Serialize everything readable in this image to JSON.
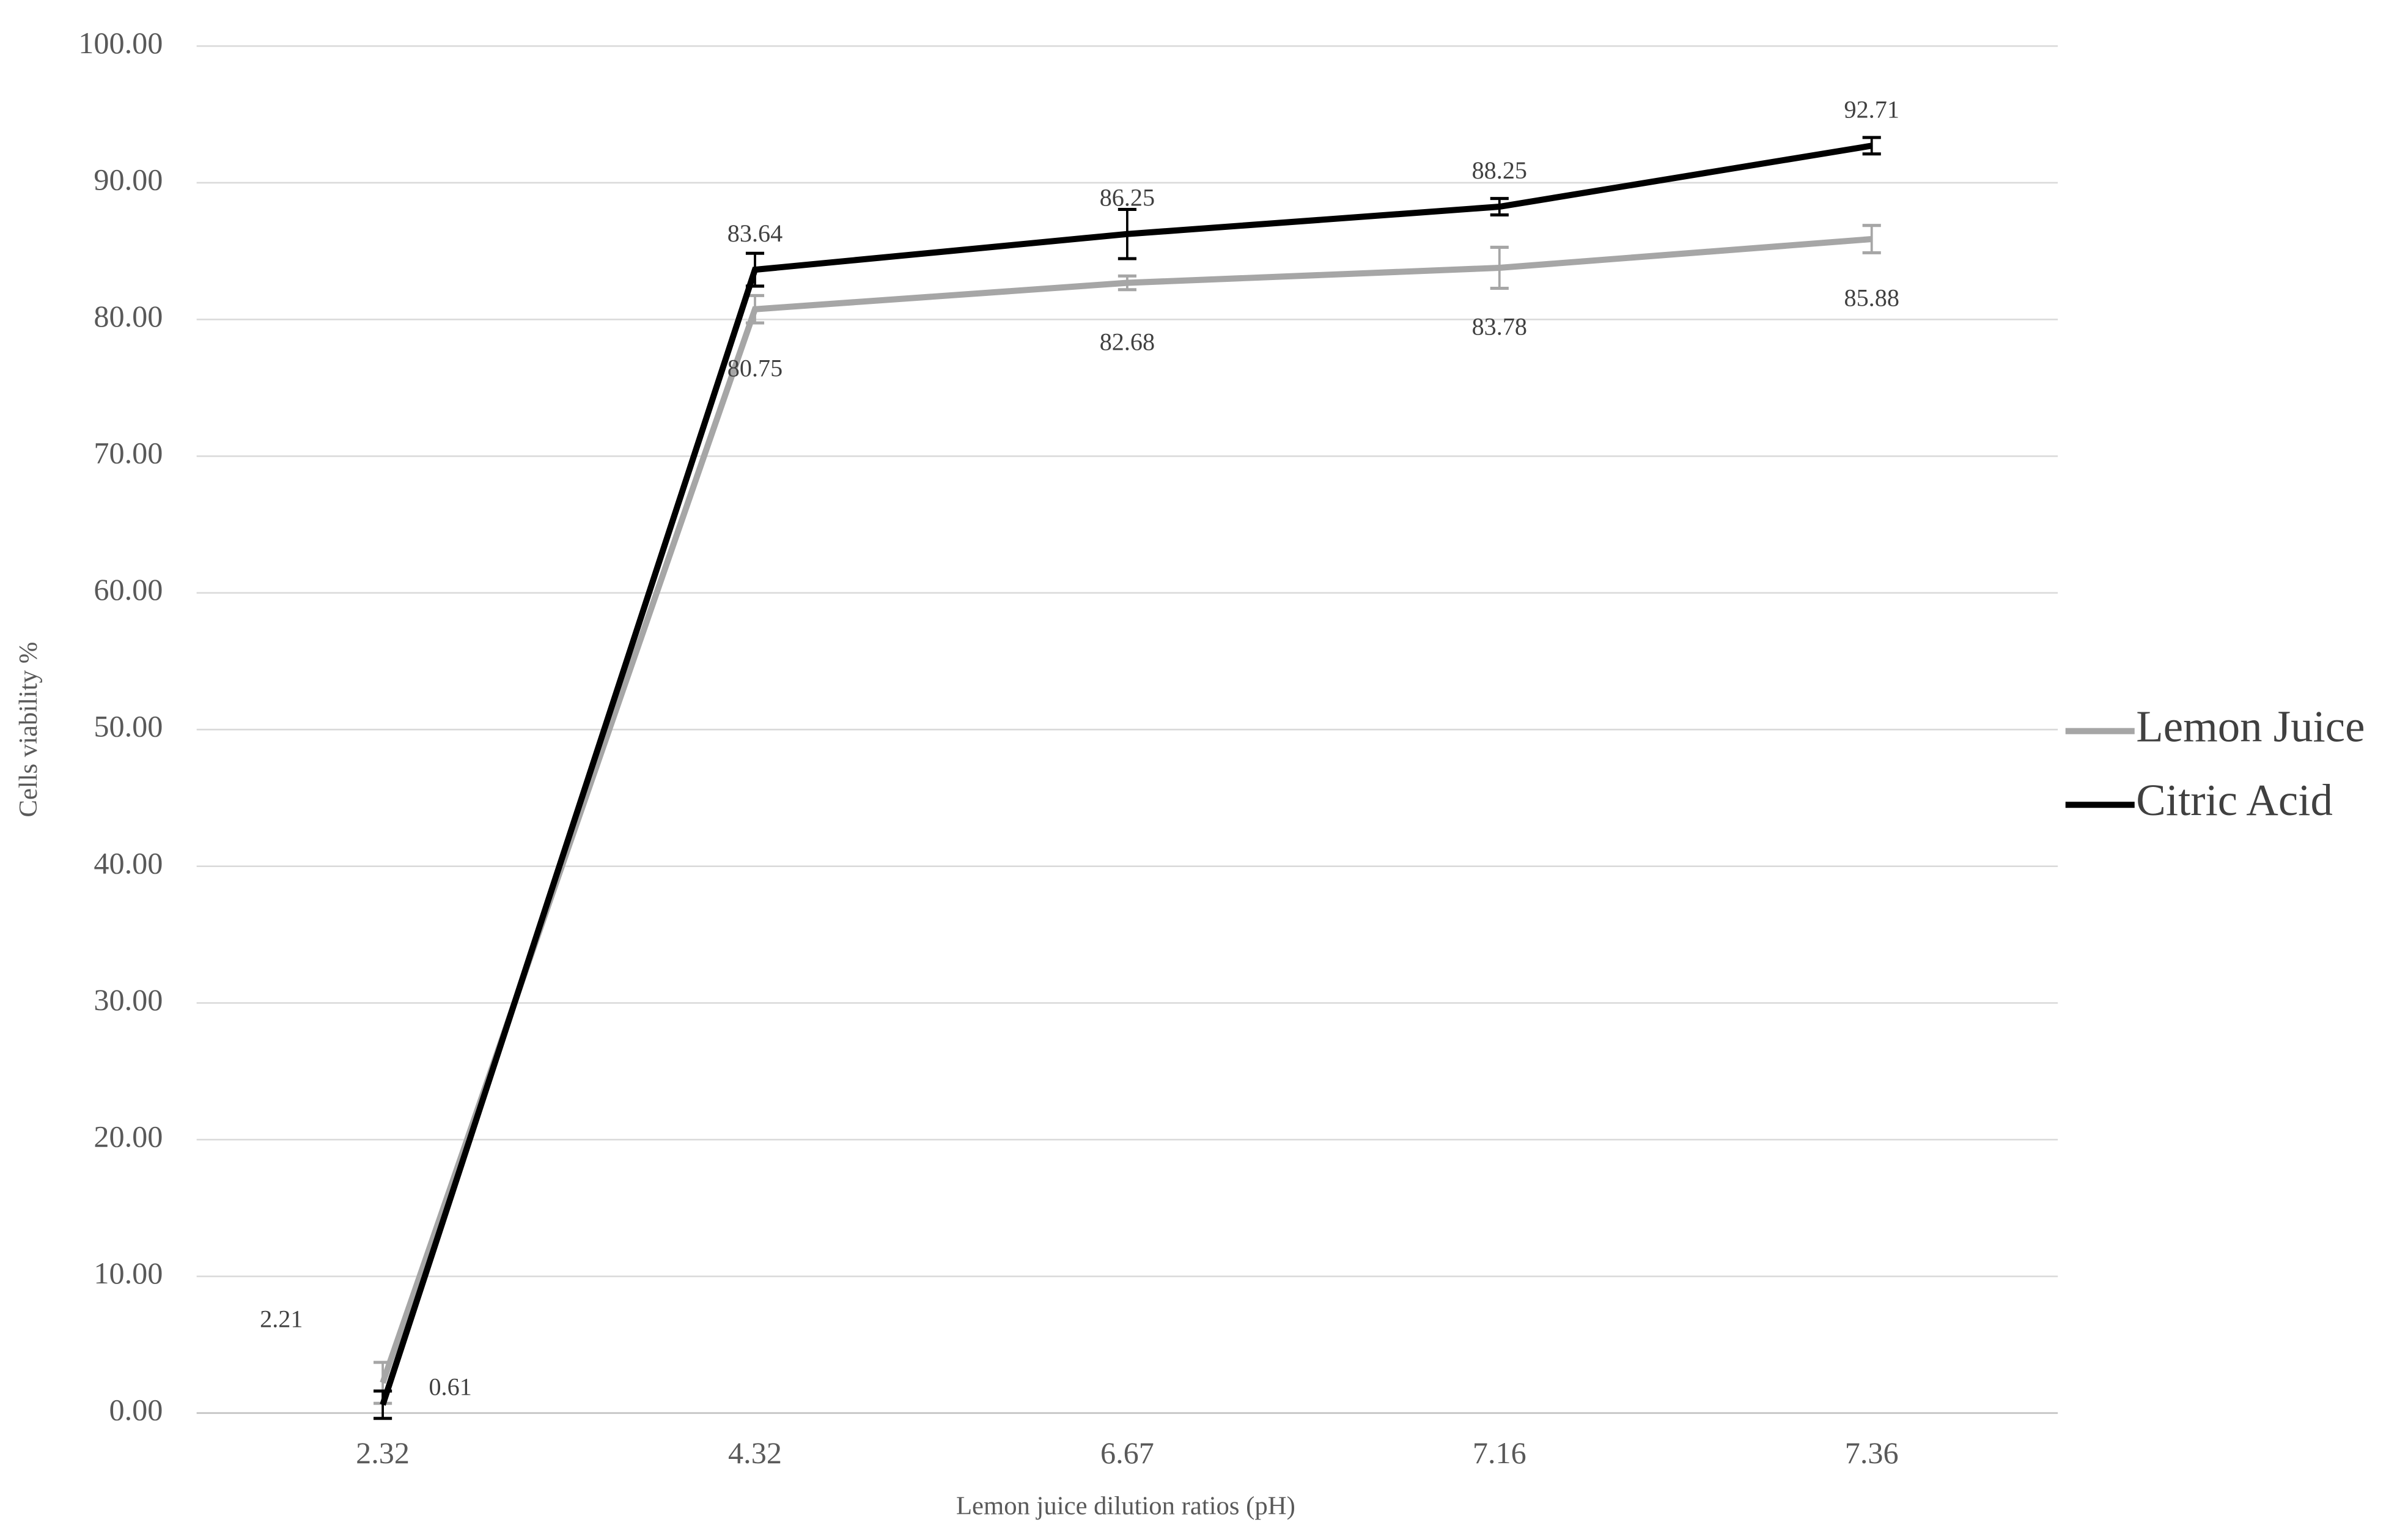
{
  "chart_data": {
    "type": "line",
    "x_label": "Lemon juice dilution ratios (pH)",
    "y_label": "Cells viability %",
    "categories": [
      "2.32",
      "4.32",
      "6.67",
      "7.16",
      "7.36"
    ],
    "series": [
      {
        "name": "Lemon Juice",
        "color": "#a6a6a6",
        "values": [
          2.21,
          80.75,
          82.68,
          83.78,
          85.88
        ],
        "errors": [
          1.5,
          1.0,
          0.5,
          1.5,
          1.0
        ]
      },
      {
        "name": "Citric Acid",
        "color": "#000000",
        "values": [
          0.61,
          83.64,
          86.25,
          88.25,
          92.71
        ],
        "errors": [
          1.0,
          1.2,
          1.8,
          0.6,
          0.6
        ]
      }
    ],
    "ylim": [
      0,
      100
    ],
    "yticks": [
      {
        "value": 0,
        "label": "0.00"
      },
      {
        "value": 10,
        "label": "10.00"
      },
      {
        "value": 20,
        "label": "20.00"
      },
      {
        "value": 30,
        "label": "30.00"
      },
      {
        "value": 40,
        "label": "40.00"
      },
      {
        "value": 50,
        "label": "50.00"
      },
      {
        "value": 60,
        "label": "60.00"
      },
      {
        "value": 70,
        "label": "70.00"
      },
      {
        "value": 80,
        "label": "80.00"
      },
      {
        "value": 90,
        "label": "90.00"
      },
      {
        "value": 100,
        "label": "100.00"
      }
    ],
    "grid": true,
    "legend": "right"
  }
}
